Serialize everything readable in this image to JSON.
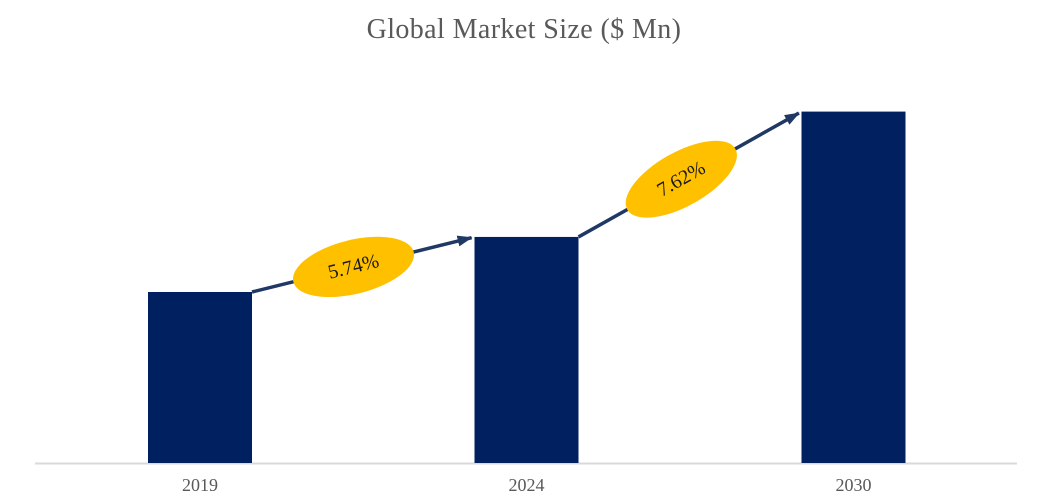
{
  "title": "Global Market Size ($ Mn)",
  "colors": {
    "bar": "#002060",
    "arrow": "#1f3864",
    "annotation_fill": "#ffc000",
    "annotation_text": "#1a1a1a",
    "axis_line": "#d9d9d9",
    "label_text": "#595959",
    "background": "#ffffff"
  },
  "chart_data": {
    "type": "bar",
    "title": "Global Market Size ($ Mn)",
    "categories": [
      "2019",
      "2024",
      "2030"
    ],
    "values": [
      100,
      132.2,
      205.5
    ],
    "value_axis": "not shown; bar heights imply relative values with 2019 = 100",
    "xlabel": "",
    "ylabel": "",
    "grid": false,
    "legend": false,
    "annotations": [
      {
        "label": "5.74%",
        "from": "2019",
        "to": "2024",
        "shape": "ellipse-on-arrow"
      },
      {
        "label": "7.62%",
        "from": "2024",
        "to": "2030",
        "shape": "ellipse-on-arrow"
      }
    ]
  }
}
